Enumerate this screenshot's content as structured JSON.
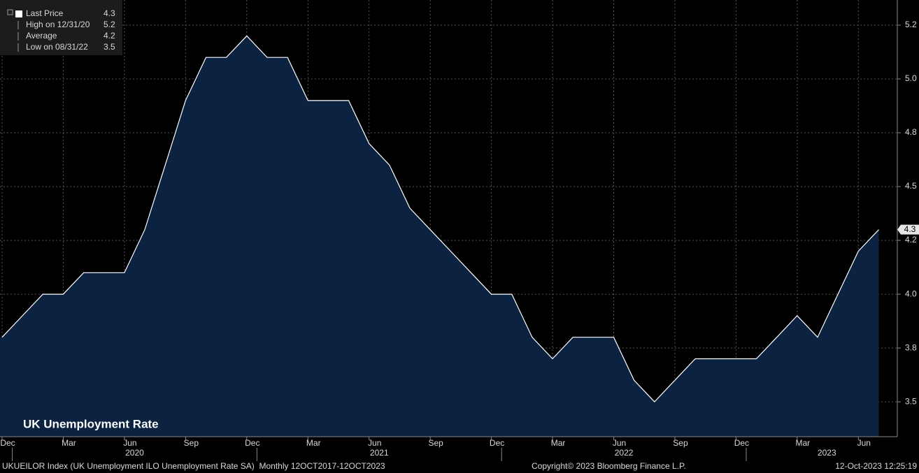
{
  "chart_data": {
    "type": "area",
    "title": "UK Unemployment Rate",
    "categories": [
      "Dec",
      null,
      null,
      "Mar",
      null,
      null,
      "Jun",
      null,
      null,
      "Sep",
      null,
      null,
      "Dec",
      null,
      null,
      "Mar",
      null,
      null,
      "Jun",
      null,
      null,
      "Sep",
      null,
      null,
      "Dec",
      null,
      null,
      "Mar",
      null,
      null,
      "Jun",
      null,
      null,
      "Sep",
      null,
      null,
      "Dec",
      null,
      null,
      "Mar",
      null,
      null,
      "Jun",
      null
    ],
    "years": [
      "2020",
      "2021",
      "2022",
      "2023"
    ],
    "values": [
      3.8,
      3.9,
      4.0,
      4.0,
      4.1,
      4.1,
      4.1,
      4.3,
      4.6,
      4.9,
      5.1,
      5.1,
      5.2,
      5.1,
      5.1,
      4.9,
      4.9,
      4.9,
      4.7,
      4.6,
      4.4,
      4.3,
      4.2,
      4.1,
      4.0,
      4.0,
      3.8,
      3.7,
      3.8,
      3.8,
      3.8,
      3.6,
      3.5,
      3.6,
      3.7,
      3.7,
      3.7,
      3.7,
      3.8,
      3.9,
      3.8,
      4.0,
      4.2,
      4.3
    ],
    "color": "#0b2240",
    "line_color": "#ffffff",
    "ylim": [
      3.338,
      5.367
    ],
    "yticks": [
      {
        "value": 3.5,
        "label": "3.5"
      },
      {
        "value": 3.75,
        "label": "3.8"
      },
      {
        "value": 4.0,
        "label": "4.0"
      },
      {
        "value": 4.25,
        "label": "4.2"
      },
      {
        "value": 4.5,
        "label": "4.5"
      },
      {
        "value": 4.75,
        "label": "4.8"
      },
      {
        "value": 5.0,
        "label": "5.0"
      },
      {
        "value": 5.25,
        "label": "5.2"
      }
    ],
    "grid": true,
    "legend": [
      {
        "label": "Last Price",
        "value": 4.3
      },
      {
        "label": "High on 12/31/20",
        "value": 5.2
      },
      {
        "label": "Average",
        "value": 4.2
      },
      {
        "label": "Low on 08/31/22",
        "value": 3.5
      }
    ],
    "footer": {
      "source": "UKUEILOR Index (UK Unemployment ILO Unemployment Rate SA)  Monthly 12OCT2017-12OCT2023",
      "copyright": "Copyright© 2023 Bloomberg Finance L.P.",
      "timestamp": "12-Oct-2023 12:25:19"
    }
  }
}
